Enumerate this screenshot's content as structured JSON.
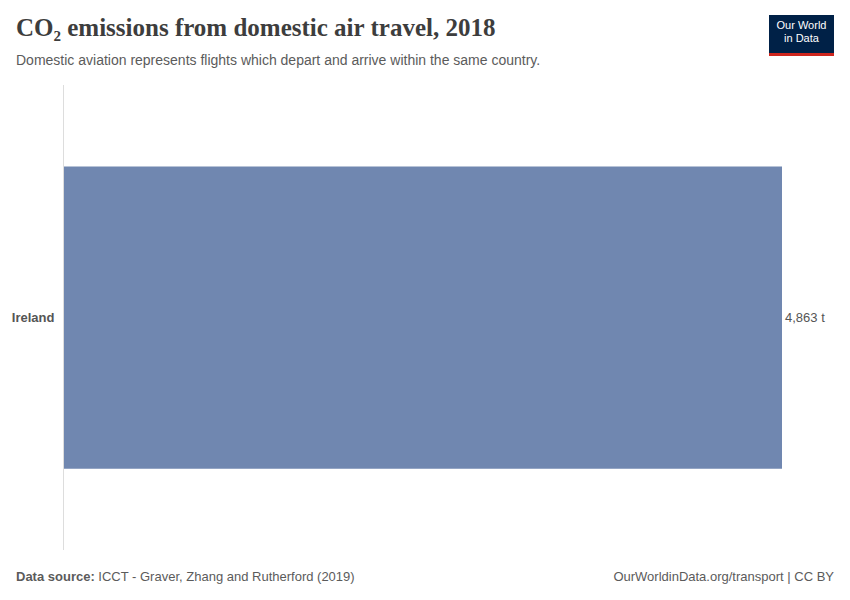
{
  "chart_data": {
    "type": "bar",
    "orientation": "horizontal",
    "title": "CO₂ emissions from domestic air travel, 2018",
    "subtitle": "Domestic aviation represents flights which depart and arrive within the same country.",
    "categories": [
      "Ireland"
    ],
    "values": [
      4863
    ],
    "value_labels": [
      "4,863 t"
    ],
    "data_labels": true,
    "color": "#7087b0",
    "xlim": [
      0,
      4863
    ],
    "tick_labels": "y",
    "grid": false,
    "source_label": "Data source:",
    "source": "ICCT - Graver, Zhang and Rutherford (2019)",
    "note": "OurWorldinData.org/transport | CC BY",
    "logo": [
      "Our World",
      "in Data"
    ]
  }
}
